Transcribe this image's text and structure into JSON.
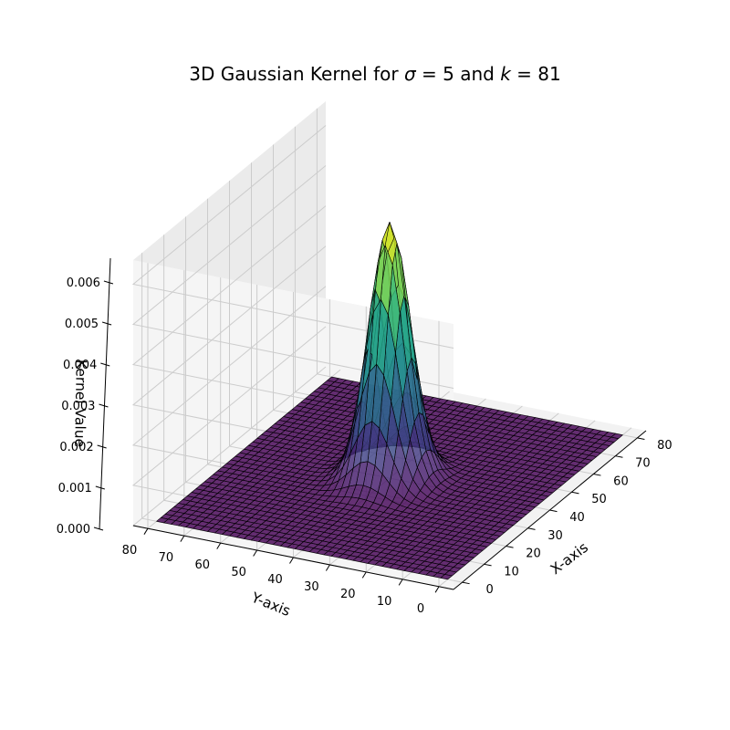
{
  "chart_data": {
    "type": "surface3d",
    "title": "3D Gaussian Kernel for σ = 5 and k = 81",
    "title_parts": {
      "prefix": "3D Gaussian Kernel for ",
      "sigma_sym": "σ",
      "sigma_eq": " = 5 and ",
      "k_sym": "k",
      "k_eq": " = 81"
    },
    "xlabel": "X-axis",
    "ylabel": "Y-axis",
    "zlabel": "Kernel Value",
    "sigma": 5,
    "kernel_size": 81,
    "center": 40,
    "peak_value": 0.00637,
    "xlim": [
      -4,
      84
    ],
    "ylim": [
      -4,
      84
    ],
    "zlim": [
      0,
      0.0066
    ],
    "x_ticks": [
      "0",
      "10",
      "20",
      "30",
      "40",
      "50",
      "60",
      "70",
      "80"
    ],
    "y_ticks": [
      "0",
      "10",
      "20",
      "30",
      "40",
      "50",
      "60",
      "70",
      "80"
    ],
    "z_ticks": [
      "0.000",
      "0.001",
      "0.002",
      "0.003",
      "0.004",
      "0.005",
      "0.006"
    ],
    "grid": true,
    "colormap": "viridis",
    "edge_color": "#000000",
    "pane_color": "#f2f2f2",
    "grid_color": "#cccccc"
  }
}
